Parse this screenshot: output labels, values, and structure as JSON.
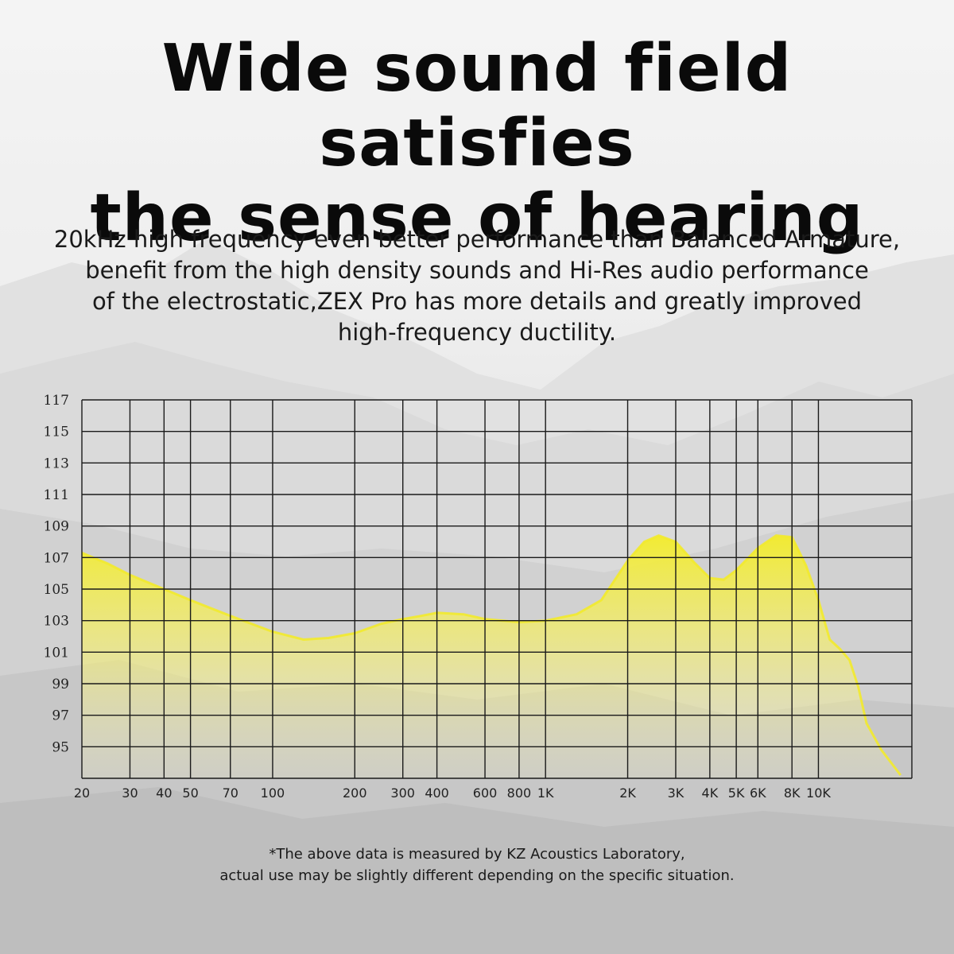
{
  "headline": {
    "line1": "Wide sound field satisfies",
    "line2": "the sense of hearing"
  },
  "description": {
    "lines": [
      "20kHz high frequency even better performance than Balanced Armature,",
      "benefit from the high density sounds and Hi-Res audio performance",
      "of the electrostatic,ZEX Pro has more details and greatly improved",
      "high-frequency ductility."
    ]
  },
  "footnote": {
    "line1": "*The above data is measured by KZ Acoustics Laboratory,",
    "line2": "actual use may be slightly different depending on the specific situation."
  },
  "chart_data": {
    "type": "area",
    "title": "",
    "xlabel": "",
    "ylabel": "",
    "x_scale": "log",
    "xlim": [
      20,
      22000
    ],
    "ylim": [
      93,
      117
    ],
    "grid": true,
    "y_ticks": [
      117,
      115,
      113,
      111,
      109,
      107,
      105,
      103,
      101,
      99,
      97,
      95
    ],
    "x_ticks": [
      {
        "value": 20,
        "label": "20"
      },
      {
        "value": 30,
        "label": "30"
      },
      {
        "value": 40,
        "label": "40"
      },
      {
        "value": 50,
        "label": "50"
      },
      {
        "value": 70,
        "label": "70"
      },
      {
        "value": 100,
        "label": "100"
      },
      {
        "value": 200,
        "label": "200"
      },
      {
        "value": 300,
        "label": "300"
      },
      {
        "value": 400,
        "label": "400"
      },
      {
        "value": 600,
        "label": "600"
      },
      {
        "value": 800,
        "label": "800"
      },
      {
        "value": 1000,
        "label": "1K"
      },
      {
        "value": 2000,
        "label": "2K"
      },
      {
        "value": 3000,
        "label": "3K"
      },
      {
        "value": 4000,
        "label": "4K"
      },
      {
        "value": 5000,
        "label": "5K"
      },
      {
        "value": 6000,
        "label": "6K"
      },
      {
        "value": 8000,
        "label": "8K"
      },
      {
        "value": 10000,
        "label": "10K"
      }
    ],
    "series": [
      {
        "x": [
          20,
          25,
          30,
          40,
          50,
          70,
          100,
          130,
          160,
          200,
          250,
          300,
          350,
          400,
          500,
          600,
          800,
          1000,
          1300,
          1600,
          2000,
          2300,
          2600,
          3000,
          3500,
          4000,
          4500,
          5000,
          6000,
          7000,
          8000,
          9000,
          10000,
          11000,
          12000,
          13000,
          14000,
          15000,
          17000,
          20000
        ],
        "y": [
          107.3,
          106.6,
          105.9,
          105.0,
          104.3,
          103.3,
          102.3,
          101.8,
          101.9,
          102.2,
          102.8,
          103.1,
          103.3,
          103.5,
          103.4,
          103.1,
          102.9,
          103.0,
          103.4,
          104.3,
          106.8,
          108.0,
          108.4,
          108.0,
          106.7,
          105.7,
          105.6,
          106.2,
          107.6,
          108.4,
          108.3,
          106.5,
          104.3,
          101.8,
          101.2,
          100.5,
          98.8,
          96.5,
          94.8,
          93.2
        ],
        "color": "#f2ea2c"
      }
    ]
  }
}
